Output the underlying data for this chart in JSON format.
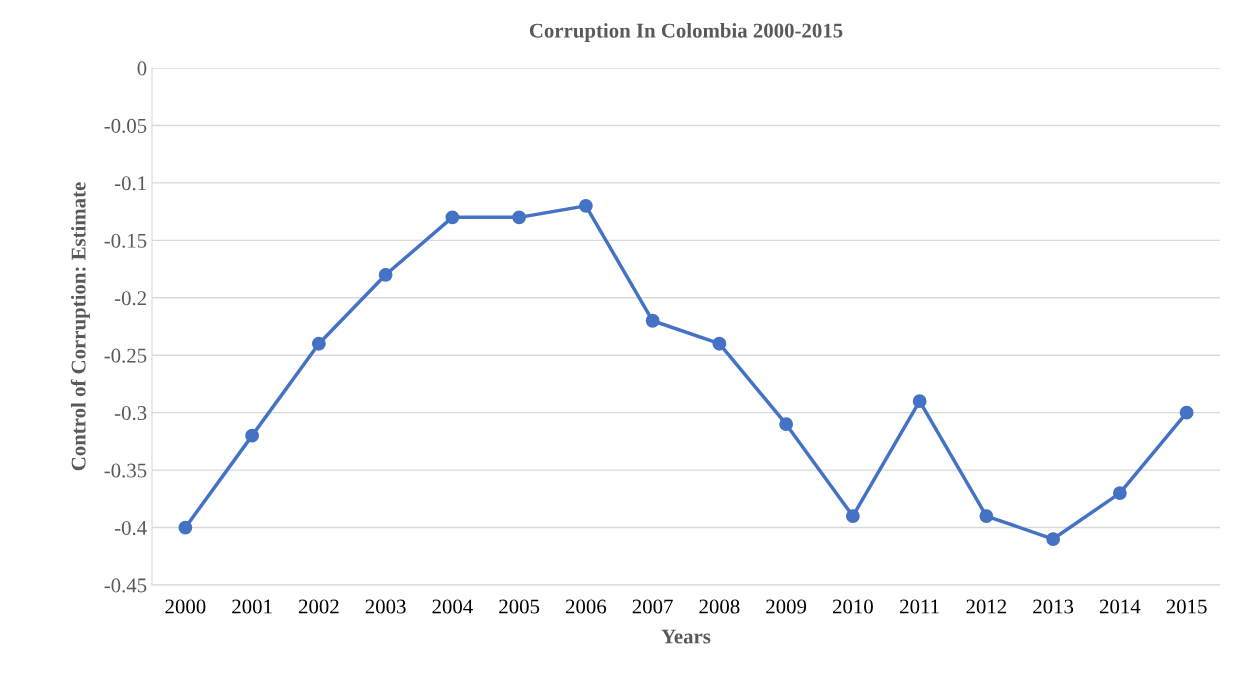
{
  "chart_data": {
    "type": "line",
    "title": "Corruption In Colombia 2000-2015",
    "xlabel": "Years",
    "ylabel": "Control of Corruption: Estimate",
    "categories": [
      "2000",
      "2001",
      "2002",
      "2003",
      "2004",
      "2005",
      "2006",
      "2007",
      "2008",
      "2009",
      "2010",
      "2011",
      "2012",
      "2013",
      "2014",
      "2015"
    ],
    "series": [
      {
        "color": "#4472c4",
        "values": [
          -0.4,
          -0.32,
          -0.24,
          -0.18,
          -0.13,
          -0.13,
          -0.12,
          -0.22,
          -0.24,
          -0.31,
          -0.39,
          -0.29,
          -0.39,
          -0.41,
          -0.37,
          -0.3
        ]
      }
    ],
    "ylim": [
      -0.45,
      0
    ],
    "yticks": [
      0,
      -0.05,
      -0.1,
      -0.15,
      -0.2,
      -0.25,
      -0.3,
      -0.35,
      -0.4,
      -0.45
    ],
    "grid": "y",
    "marker": "circle",
    "line_style": "solid"
  }
}
